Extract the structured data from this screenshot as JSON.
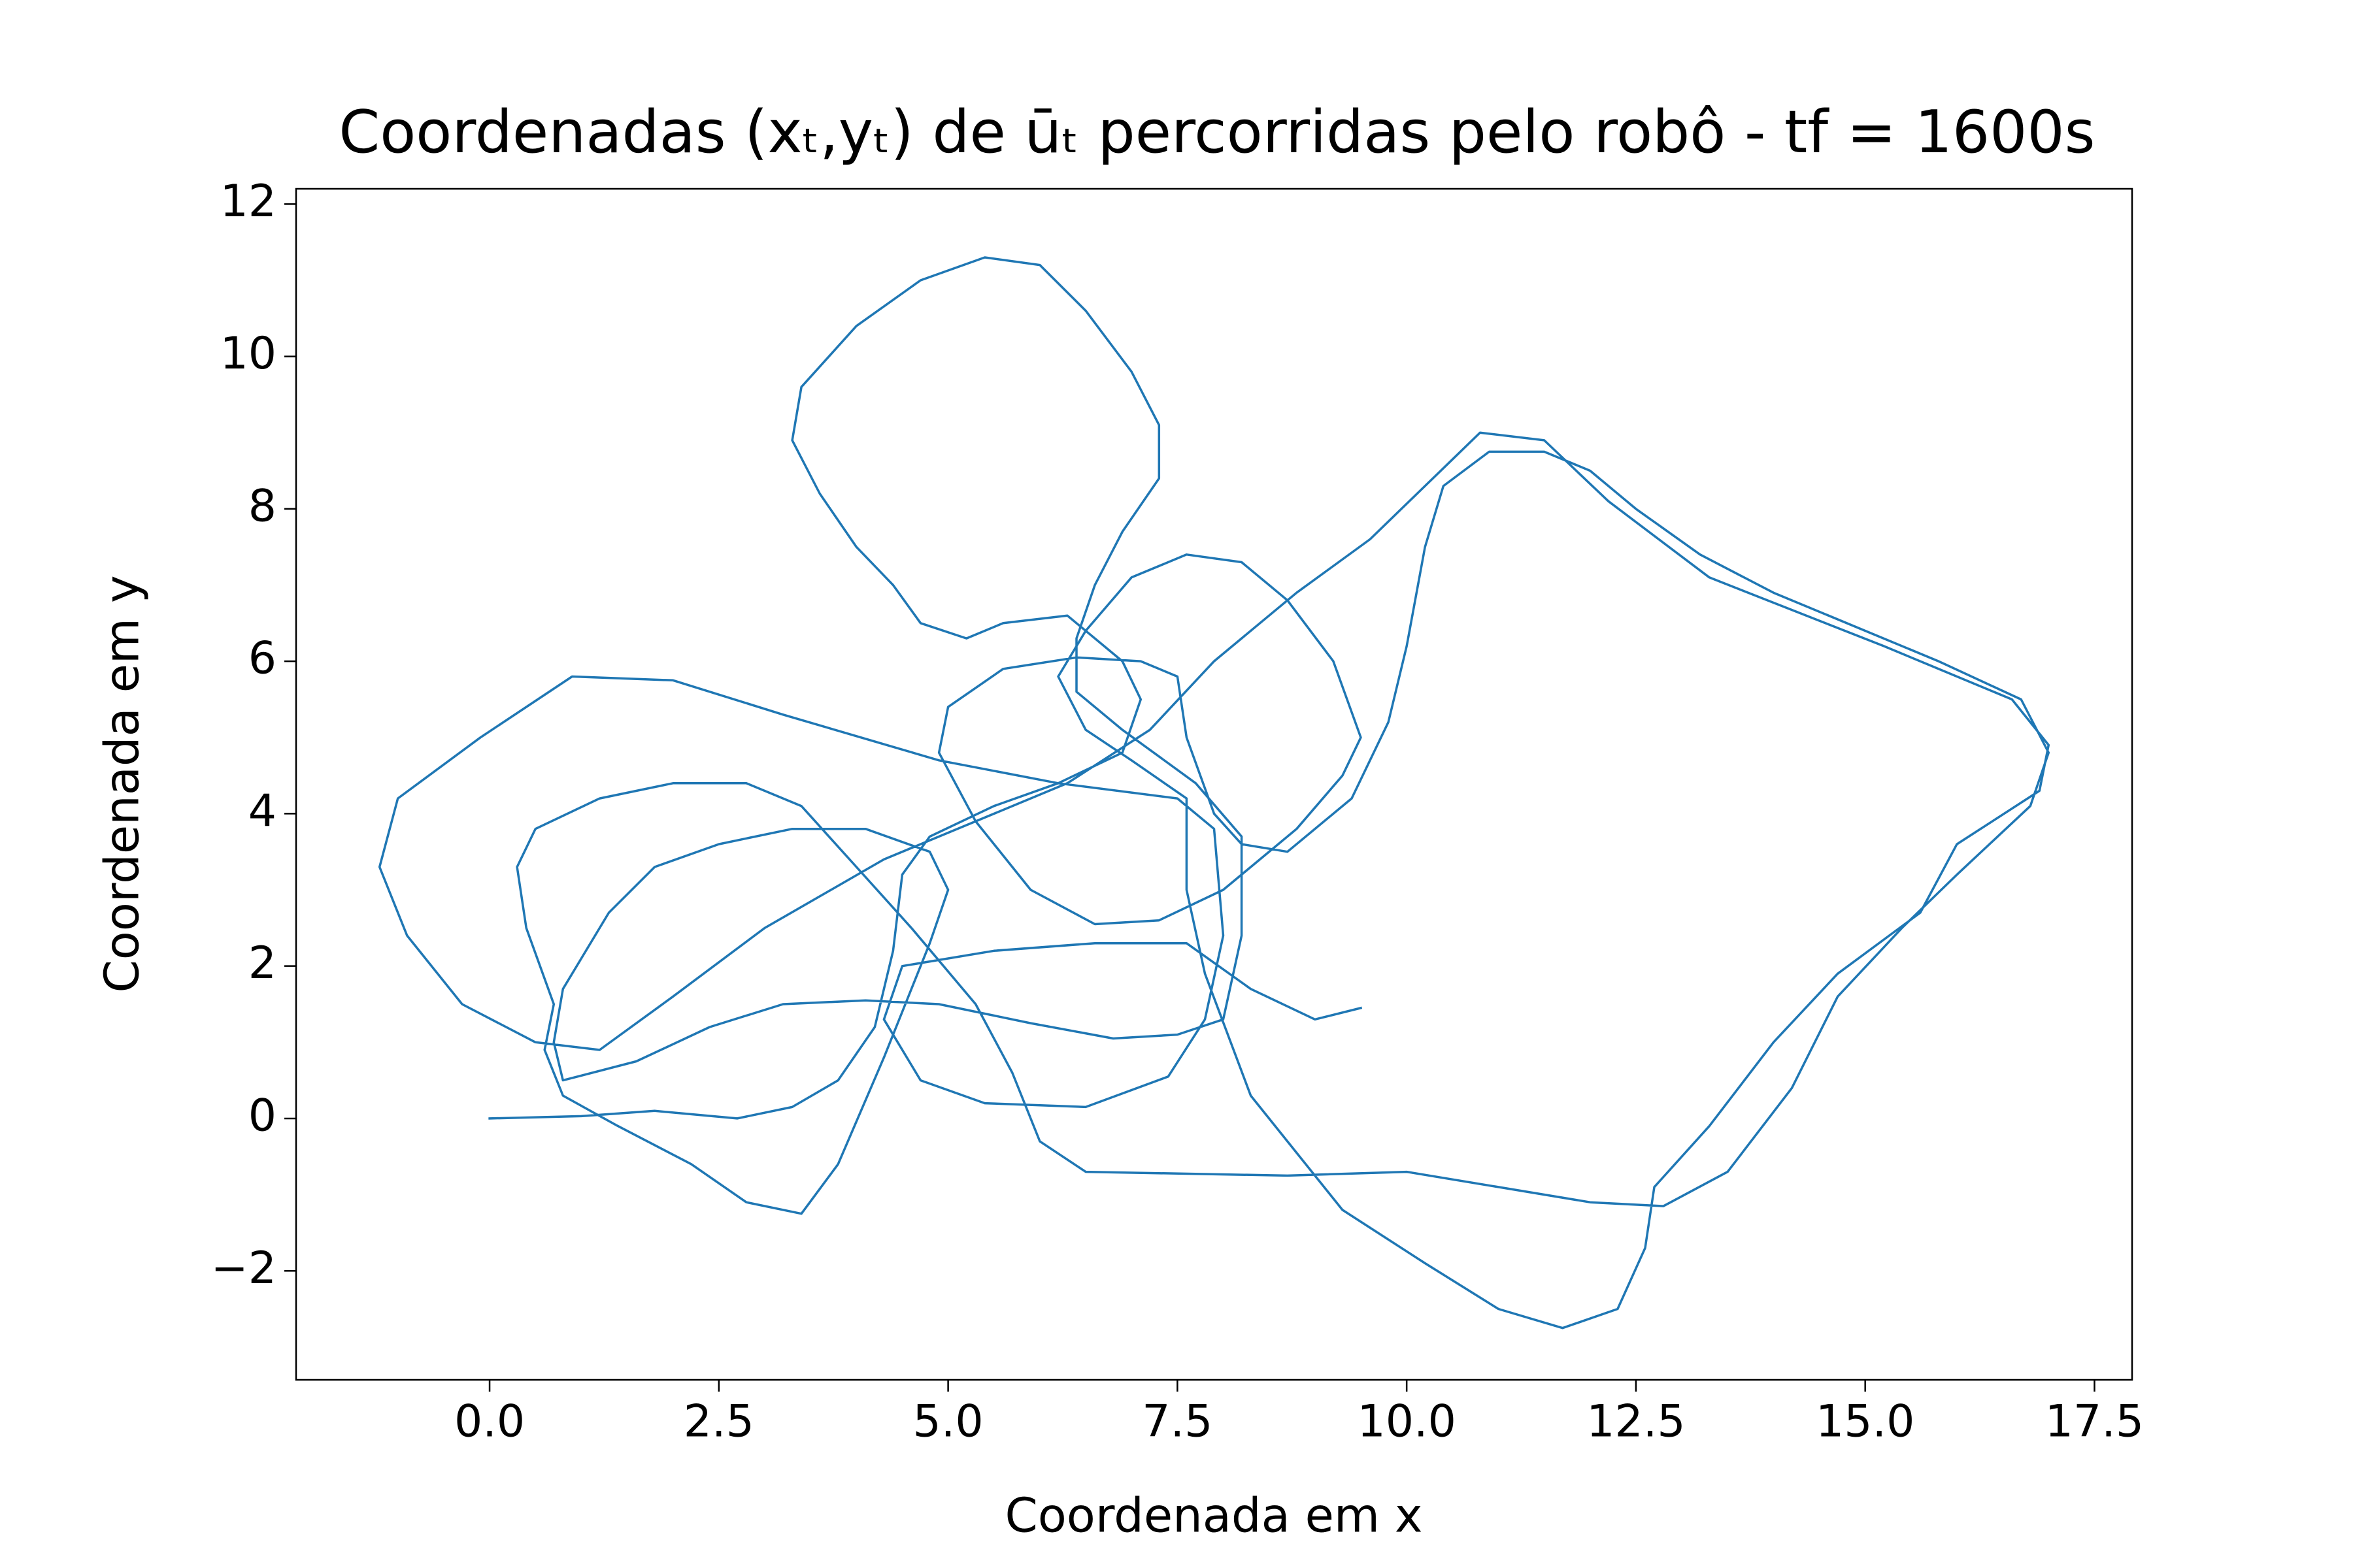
{
  "chart_data": {
    "type": "line",
    "title": "Coordenadas (xₜ,yₜ) de ūₜ percorridas pelo robô - tf = 1600s",
    "x_label": "Coordenada em x",
    "y_label": "Coordenada em y",
    "color": "#1f77b4",
    "x": [
      0,
      1,
      1.8,
      2.7,
      3.3,
      3.8,
      4.2,
      4.4,
      4.5,
      4.8,
      5.5,
      6.2,
      6.9,
      7.1,
      6.9,
      6.3,
      5.6,
      5.2,
      4.7,
      4.4,
      4.0,
      3.6,
      3.3,
      3.4,
      4.0,
      4.7,
      5.4,
      6.0,
      6.5,
      7.0,
      7.3,
      7.3,
      6.9,
      6.6,
      6.4,
      6.4,
      6.9,
      7.7,
      8.2,
      8.2,
      8.0,
      7.5,
      6.8,
      5.9,
      4.9,
      4.1,
      3.2,
      2.4,
      1.6,
      0.8,
      0.7,
      0.8,
      1.3,
      1.8,
      2.5,
      3.3,
      4.1,
      4.8,
      5.0,
      4.8,
      4.3,
      3.8,
      3.4,
      2.8,
      2.2,
      1.4,
      0.8,
      0.6,
      0.7,
      0.4,
      0.3,
      0.5,
      1.2,
      2.0,
      2.8,
      3.4,
      4.0,
      4.6,
      5.3,
      5.7,
      6.0,
      6.5,
      8.7,
      10.0,
      11.0,
      12.0,
      12.8,
      13.5,
      14.2,
      14.7,
      15.4,
      16.0,
      16.8,
      17.0,
      16.7,
      15.8,
      15.0,
      14.0,
      13.2,
      12.5,
      12.0,
      11.5,
      10.9,
      10.4,
      10.2,
      10.0,
      9.8,
      9.4,
      8.7,
      8.2,
      7.9,
      7.6,
      7.5,
      7.1,
      6.4,
      5.6,
      5.0,
      4.9,
      5.3,
      5.9,
      6.6,
      7.3,
      8.0,
      8.8,
      9.3,
      9.5,
      9.2,
      8.7,
      8.2,
      7.6,
      7.0,
      6.5,
      6.2,
      6.5,
      7.0,
      7.6,
      7.6,
      7.8,
      8.3,
      9.3,
      10.2,
      11.0,
      11.7,
      12.3,
      12.6,
      12.7,
      13.3,
      14.0,
      14.7,
      15.6,
      16.0,
      16.9,
      17.0,
      16.6,
      15.2,
      13.3,
      12.2,
      11.5,
      10.8,
      10.2,
      9.6,
      8.8,
      7.9,
      7.2,
      6.3,
      5.3,
      4.3,
      3.0,
      2.0,
      1.2,
      0.5,
      -0.3,
      -0.9,
      -1.2,
      -1.0,
      -0.1,
      0.9,
      2.0,
      3.2,
      4.9,
      6.2,
      7.5,
      7.9,
      8.0,
      7.8,
      7.4,
      6.5,
      5.4,
      4.7,
      4.3,
      4.5,
      5.5,
      6.6,
      7.6,
      8.3,
      9.0,
      9.5
    ],
    "values": [
      0,
      0.03,
      0.1,
      0,
      0.15,
      0.5,
      1.2,
      2.2,
      3.2,
      3.7,
      4.1,
      4.4,
      4.8,
      5.5,
      6.0,
      6.6,
      6.5,
      6.3,
      6.5,
      7.0,
      7.5,
      8.2,
      8.9,
      9.6,
      10.4,
      11.0,
      11.3,
      11.2,
      10.6,
      9.8,
      9.1,
      8.4,
      7.7,
      7.0,
      6.3,
      5.6,
      5.1,
      4.4,
      3.7,
      2.4,
      1.3,
      1.1,
      1.05,
      1.25,
      1.5,
      1.55,
      1.5,
      1.2,
      0.75,
      0.5,
      1.0,
      1.7,
      2.7,
      3.3,
      3.6,
      3.8,
      3.8,
      3.5,
      3.0,
      2.3,
      0.8,
      -0.6,
      -1.25,
      -1.1,
      -0.6,
      -0.1,
      0.3,
      0.9,
      1.5,
      2.5,
      3.3,
      3.8,
      4.2,
      4.4,
      4.4,
      4.1,
      3.3,
      2.5,
      1.5,
      0.6,
      -0.3,
      -0.7,
      -0.75,
      -0.7,
      -0.9,
      -1.1,
      -1.15,
      -0.7,
      0.4,
      1.6,
      2.5,
      3.2,
      4.1,
      4.8,
      5.5,
      6.0,
      6.4,
      6.9,
      7.4,
      8.0,
      8.5,
      8.75,
      8.75,
      8.3,
      7.5,
      6.2,
      5.2,
      4.2,
      3.5,
      3.6,
      4.0,
      5.0,
      5.8,
      6.0,
      6.05,
      5.9,
      5.4,
      4.8,
      3.9,
      3.0,
      2.55,
      2.6,
      3.0,
      3.8,
      4.5,
      5.0,
      6.0,
      6.8,
      7.3,
      7.4,
      7.1,
      6.4,
      5.8,
      5.1,
      4.7,
      4.2,
      3.0,
      1.9,
      0.3,
      -1.2,
      -1.9,
      -2.5,
      -2.75,
      -2.5,
      -1.7,
      -0.9,
      -0.1,
      1.0,
      1.9,
      2.7,
      3.6,
      4.3,
      4.9,
      5.5,
      6.2,
      7.1,
      8.1,
      8.9,
      9.0,
      8.3,
      7.6,
      6.9,
      6.0,
      5.1,
      4.4,
      3.9,
      3.4,
      2.5,
      1.6,
      0.9,
      1.0,
      1.5,
      2.4,
      3.3,
      4.2,
      5.0,
      5.8,
      5.75,
      5.3,
      4.7,
      4.4,
      4.2,
      3.8,
      2.4,
      1.3,
      0.55,
      0.15,
      0.2,
      0.5,
      1.3,
      2.0,
      2.2,
      2.3,
      2.3,
      1.7,
      1.3,
      1.45
    ],
    "xlim": [
      -2.11,
      17.91
    ],
    "ylim": [
      -3.43,
      12.2
    ],
    "xticks": [
      {
        "value": 0,
        "label": "0.0"
      },
      2.5,
      {
        "value": 5,
        "label": "5.0"
      },
      7.5,
      {
        "value": 10,
        "label": "10.0"
      },
      12.5,
      {
        "value": 15,
        "label": "15.0"
      },
      17.5
    ],
    "yticks": [
      {
        "value": -2,
        "label": "−2"
      },
      0,
      2,
      4,
      6,
      8,
      10,
      12
    ],
    "grid": false
  }
}
